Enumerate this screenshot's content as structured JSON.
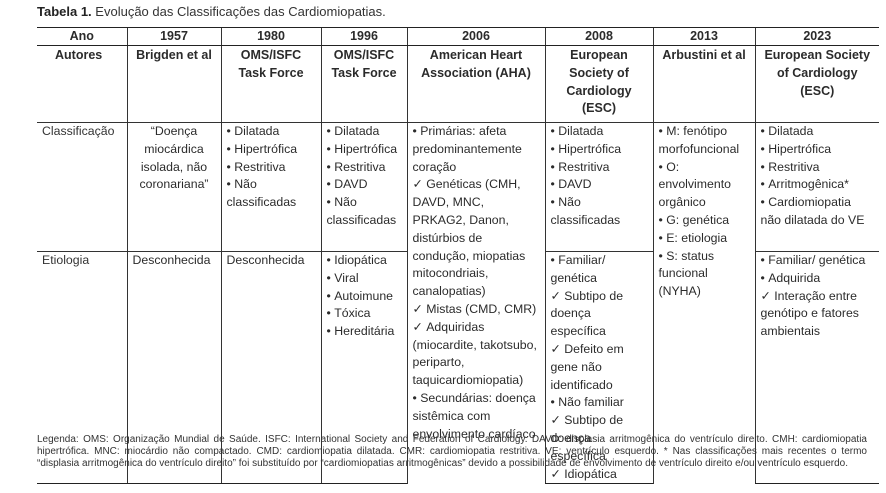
{
  "caption": {
    "label": "Tabela 1.",
    "title": " Evolução das Classificações das Cardiomiopatias."
  },
  "header": {
    "ano_label": "Ano",
    "autores_label": "Autores",
    "years": [
      "1957",
      "1980",
      "1996",
      "2006",
      "2008",
      "2013",
      "2023"
    ],
    "authors": [
      "Brigden et al",
      "OMS/ISFC Task Force",
      "OMS/ISFC Task Force",
      "American Heart Association (AHA)",
      "European Society of Cardiology (ESC)",
      "Arbustini et al",
      "European Society of Cardiology (ESC)"
    ]
  },
  "rows": {
    "classificacao_label": "Classificação",
    "etiologia_label": "Etiologia"
  },
  "classificacao": {
    "c1957": "“Doença miocárdica isolada, não coronariana”",
    "c1980": [
      "Dilatada",
      "Hipertrófica",
      "Restritiva",
      "Não classificadas"
    ],
    "c1996": [
      "Dilatada",
      "Hipertrófica",
      "Restritiva",
      "DAVD",
      "Não classificadas"
    ],
    "c2006": [
      {
        "t": "Primárias: afeta predominantemente coração",
        "k": "b"
      },
      {
        "t": "Genéticas (CMH, DAVD, MNC, PRKAG2, Danon, distúrbios de condução, miopatias mitocondriais, canalopatias)",
        "k": "chk"
      },
      {
        "t": "Mistas (CMD, CMR)",
        "k": "chk"
      },
      {
        "t": "Adquiridas (miocardite, takotsubo, periparto, taquicardiomiopatia)",
        "k": "chk"
      },
      {
        "t": "Secundárias: doença sistêmica com envolvimento cardíaco",
        "k": "b"
      }
    ],
    "c2008": [
      "Dilatada",
      "Hipertrófica",
      "Restritiva",
      "DAVD",
      "Não classificadas"
    ],
    "c2013": [
      "M: fenótipo morfofuncional",
      "O: envolvimento orgânico",
      "G: genética",
      "E: etiologia",
      "S: status funcional (NYHA)"
    ],
    "c2023": [
      "Dilatada",
      "Hipertrófica",
      "Restritiva",
      "Arritmogênica*",
      "Cardiomiopatia não dilatada do VE"
    ]
  },
  "etiologia": {
    "e1957": "Desconhecida",
    "e1980": "Desconhecida",
    "e1996": [
      "Idiopática",
      "Viral",
      "Autoimune",
      "Tóxica",
      "Hereditária"
    ],
    "e2008": [
      {
        "t": "Familiar/ genética",
        "k": "b"
      },
      {
        "t": "Subtipo de doença específica",
        "k": "chk"
      },
      {
        "t": "Defeito em gene não identificado",
        "k": "chk"
      },
      {
        "t": "Não familiar",
        "k": "b"
      },
      {
        "t": "Subtipo de doença específica",
        "k": "chk"
      },
      {
        "t": "Idiopática",
        "k": "chk"
      }
    ],
    "e2023": [
      {
        "t": "Familiar/ genética",
        "k": "b"
      },
      {
        "t": "Adquirida",
        "k": "b"
      },
      {
        "t": "Interação entre genótipo e fatores ambientais",
        "k": "chk"
      }
    ]
  },
  "legend": "Legenda: OMS: Organização Mundial de Saúde. ISFC: International Society and Federation of Cardiology. DAVD: displasia arritmogênica do ventrículo direito. CMH: cardiomiopatia hipertrófica. MNC: miocárdio não compactado. CMD: cardiomiopatia dilatada. CMR: cardiomiopatia restritiva. VE: ventrículo esquerdo. * Nas classificações mais recentes o termo “displasia arritmogênica do ventrículo direito” foi substituído por “cardiomiopatias arritmogênicas” devido a possibilidade de envolvimento de ventrículo direito e/ou ventrículo esquerdo."
}
